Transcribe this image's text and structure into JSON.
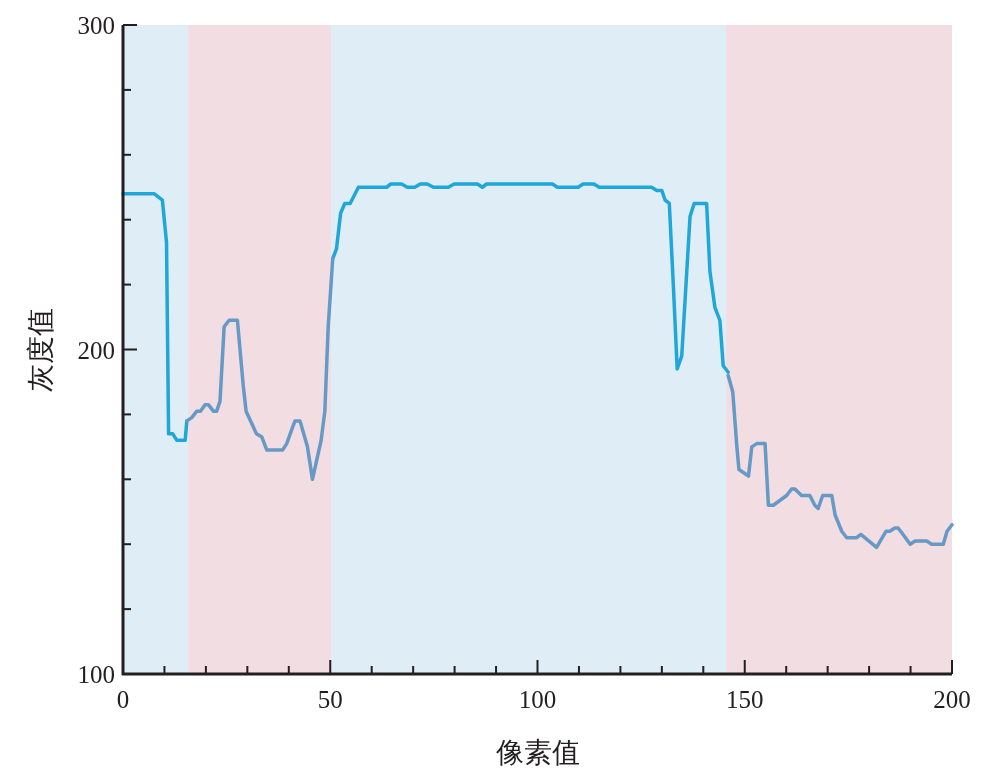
{
  "chart_data": {
    "type": "line",
    "xlabel": "像素值",
    "ylabel": "灰度值",
    "xlim": [
      0,
      200
    ],
    "ylim": [
      100,
      300
    ],
    "xticks": [
      0,
      {
        "value": 10,
        "label": null
      },
      {
        "value": 20,
        "label": null
      },
      {
        "value": 30,
        "label": null
      },
      {
        "value": 40,
        "label": null
      },
      50,
      {
        "value": 60,
        "label": null
      },
      {
        "value": 70,
        "label": null
      },
      {
        "value": 80,
        "label": null
      },
      {
        "value": 90,
        "label": null
      },
      100,
      {
        "value": 110,
        "label": null
      },
      {
        "value": 120,
        "label": null
      },
      {
        "value": 130,
        "label": null
      },
      {
        "value": 140,
        "label": null
      },
      150,
      {
        "value": 160,
        "label": null
      },
      {
        "value": 170,
        "label": null
      },
      {
        "value": 180,
        "label": null
      },
      {
        "value": 190,
        "label": null
      },
      200
    ],
    "yticks": [
      100,
      {
        "value": 120,
        "label": null
      },
      {
        "value": 140,
        "label": null
      },
      {
        "value": 160,
        "label": null
      },
      {
        "value": 180,
        "label": null
      },
      200,
      {
        "value": 220,
        "label": null
      },
      {
        "value": 240,
        "label": null
      },
      {
        "value": 260,
        "label": null
      },
      {
        "value": 280,
        "label": null
      },
      300
    ],
    "grid": false,
    "marker": "none",
    "line_style": "solid",
    "bands": [
      {
        "axis": "x",
        "from": 0,
        "to": 15.7,
        "color": "#dfedf6"
      },
      {
        "axis": "x",
        "from": 15.7,
        "to": 50.2,
        "color": "#f2dde3"
      },
      {
        "axis": "x",
        "from": 50.2,
        "to": 145.5,
        "color": "#dfedf6"
      },
      {
        "axis": "x",
        "from": 145.5,
        "to": 200,
        "color": "#f2dde3"
      }
    ],
    "series": [
      {
        "color": "#1ea7d8",
        "x": [
          0,
          7.5,
          8.5,
          9.5,
          10.5,
          11,
          12,
          13,
          15,
          15.4,
          null,
          50.6,
          51.5,
          52.5,
          53.5,
          54.8,
          56.8,
          63.6,
          64.6,
          67.2,
          68.6,
          70.4,
          71.7,
          73.4,
          74.9,
          78.5,
          79.9,
          85.5,
          86.7,
          87.7,
          103.6,
          104.8,
          109.8,
          111,
          113.6,
          114.9,
          127.5,
          128.8,
          130,
          130.8,
          131.8,
          132.8,
          133.7,
          134.8,
          136.8,
          137.8,
          140.8,
          141.6,
          142.8,
          144,
          144.8,
          146
        ],
        "values": [
          248,
          248,
          247,
          246,
          233,
          174,
          174,
          172,
          172,
          178,
          null,
          228,
          231,
          242,
          245,
          245,
          250,
          250,
          251,
          251,
          250,
          250,
          251,
          251,
          250,
          250,
          251,
          251,
          250,
          251,
          251,
          250,
          250,
          251,
          251,
          250,
          250,
          249,
          249,
          246,
          245,
          219,
          194,
          198,
          241,
          245,
          245,
          224,
          213,
          209,
          195,
          193
        ]
      },
      {
        "color": "#6599c6",
        "x": [
          15.4,
          16.6,
          17.8,
          18.7,
          19.8,
          20.6,
          21.8,
          22.6,
          23.4,
          24.4,
          25.6,
          27.6,
          29,
          29.7,
          32.2,
          33.5,
          34.7,
          38.5,
          39.5,
          40.9,
          41.5,
          42.7,
          44.5,
          45.7,
          47.8,
          48.7,
          49.5,
          50.6,
          null,
          146,
          147.1,
          148.1,
          148.6,
          150.9,
          151.7,
          152.9,
          154.9,
          155.7,
          156.9,
          160.1,
          161.3,
          162.1,
          163.7,
          165.7,
          166.9,
          167.7,
          168.8,
          171,
          171.8,
          173.4,
          174.6,
          177,
          178,
          181.8,
          184.1,
          185,
          186.2,
          187,
          188.2,
          189.9,
          191.1,
          193.9,
          195.1,
          197.9,
          198.8,
          200
        ],
        "values": [
          178,
          179,
          181,
          181,
          183,
          183,
          181,
          181,
          184,
          207,
          209,
          209,
          189,
          181,
          174,
          173,
          169,
          169,
          171,
          176,
          178,
          178,
          170,
          160,
          172,
          181,
          207,
          228,
          null,
          192,
          187,
          170,
          163,
          161,
          170,
          171,
          171,
          152,
          152,
          155,
          157,
          157,
          155,
          155,
          152,
          151,
          155,
          155,
          149,
          144,
          142,
          142,
          143,
          139,
          144,
          144,
          145,
          145,
          143,
          140,
          141,
          141,
          140,
          140,
          144,
          146
        ]
      }
    ]
  }
}
